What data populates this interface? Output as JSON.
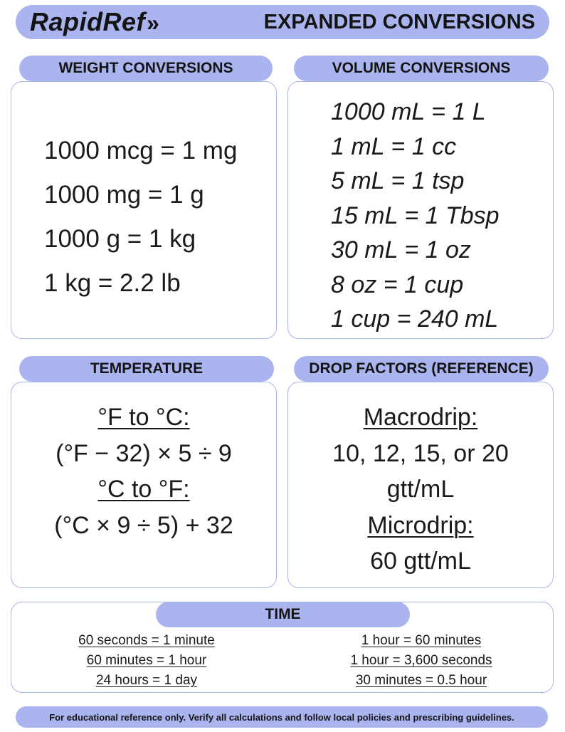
{
  "header": {
    "brand": "RapidRef",
    "brand_mark": "»",
    "title": "EXPANDED CONVERSIONS"
  },
  "weight": {
    "title": "WEIGHT CONVERSIONS",
    "items": [
      "1000 mcg = 1 mg",
      "1000 mg = 1 g",
      "1000 g = 1 kg",
      "1 kg = 2.2 lb"
    ]
  },
  "volume": {
    "title": "VOLUME CONVERSIONS",
    "items": [
      "1000 mL = 1 L",
      "1 mL = 1 cc",
      "5 mL = 1 tsp",
      "15 mL = 1 Tbsp",
      "30 mL = 1 oz",
      "8 oz = 1 cup",
      "1 cup = 240 mL"
    ]
  },
  "temperature": {
    "title": "TEMPERATURE",
    "f_to_c_label": "°F to °C:",
    "f_to_c_formula": "(°F − 32) × 5 ÷ 9",
    "c_to_f_label": "°C to °F:",
    "c_to_f_formula": "(°C × 9 ÷ 5) + 32"
  },
  "drop_factors": {
    "title": "DROP FACTORS (REFERENCE)",
    "macro_label": "Macrodrip:",
    "macro_values": "10, 12, 15, or 20",
    "macro_unit": "gtt/mL",
    "micro_label": "Microdrip:",
    "micro_value": "60 gtt/mL"
  },
  "time": {
    "title": "TIME",
    "left": [
      "60 seconds = 1 minute",
      "60 minutes = 1 hour",
      "24 hours = 1 day"
    ],
    "right": [
      "1 hour = 60 minutes",
      "1 hour = 3,600 seconds",
      "30 minutes = 0.5 hour"
    ]
  },
  "footer": {
    "text": "For educational reference only. Verify all calculations and follow local policies and prescribing guidelines."
  },
  "colors": {
    "accent": "#aab4ef",
    "text": "#141414",
    "background": "#ffffff"
  }
}
